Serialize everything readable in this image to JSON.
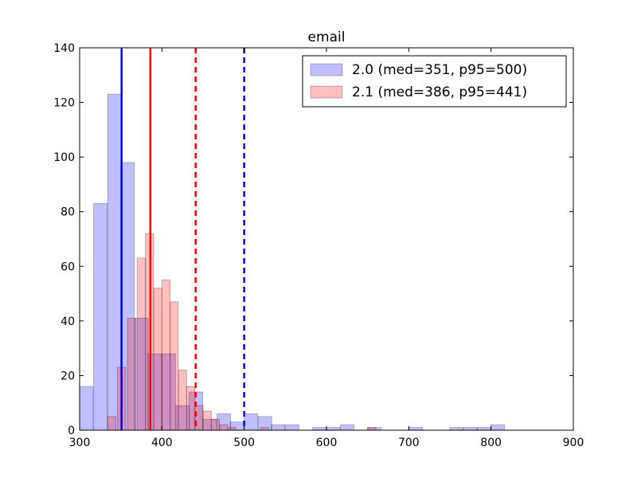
{
  "chart_data": {
    "type": "bar",
    "title": "email",
    "xlabel": "",
    "ylabel": "",
    "xlim": [
      300,
      900
    ],
    "ylim": [
      0,
      140
    ],
    "x_ticks": [
      300,
      400,
      500,
      600,
      700,
      800,
      900
    ],
    "y_ticks": [
      0,
      20,
      40,
      60,
      80,
      100,
      120,
      140
    ],
    "grid": false,
    "legend_position": "top-right",
    "bin_width": 16.5,
    "series": [
      {
        "name": "2.0 (med=351, p95=500)",
        "color": "#0000ff",
        "bars": [
          {
            "x0": 300,
            "value": 16
          },
          {
            "x0": 317,
            "value": 83
          },
          {
            "x0": 334,
            "value": 123
          },
          {
            "x0": 350,
            "value": 98
          },
          {
            "x0": 367,
            "value": 41
          },
          {
            "x0": 383,
            "value": 28
          },
          {
            "x0": 400,
            "value": 28
          },
          {
            "x0": 417,
            "value": 9
          },
          {
            "x0": 433,
            "value": 14
          },
          {
            "x0": 450,
            "value": 4
          },
          {
            "x0": 467,
            "value": 6
          },
          {
            "x0": 483,
            "value": 3
          },
          {
            "x0": 500,
            "value": 6
          },
          {
            "x0": 517,
            "value": 5
          },
          {
            "x0": 533,
            "value": 2
          },
          {
            "x0": 550,
            "value": 2
          },
          {
            "x0": 583,
            "value": 1
          },
          {
            "x0": 600,
            "value": 1
          },
          {
            "x0": 617,
            "value": 2
          },
          {
            "x0": 650,
            "value": 1
          },
          {
            "x0": 700,
            "value": 1
          },
          {
            "x0": 750,
            "value": 1
          },
          {
            "x0": 767,
            "value": 1
          },
          {
            "x0": 783,
            "value": 1
          },
          {
            "x0": 800,
            "value": 2
          }
        ],
        "median": 351,
        "p95": 500
      },
      {
        "name": "2.1 (med=386, p95=441)",
        "color": "#ff0000",
        "bars": [
          {
            "x0": 334,
            "value": 5
          },
          {
            "x0": 346,
            "value": 23
          },
          {
            "x0": 358,
            "value": 41
          },
          {
            "x0": 370,
            "value": 63
          },
          {
            "x0": 380,
            "value": 72
          },
          {
            "x0": 390,
            "value": 52
          },
          {
            "x0": 400,
            "value": 55
          },
          {
            "x0": 410,
            "value": 47
          },
          {
            "x0": 420,
            "value": 22
          },
          {
            "x0": 430,
            "value": 16
          },
          {
            "x0": 440,
            "value": 9
          },
          {
            "x0": 450,
            "value": 7
          },
          {
            "x0": 460,
            "value": 4
          },
          {
            "x0": 470,
            "value": 2
          },
          {
            "x0": 480,
            "value": 1
          },
          {
            "x0": 520,
            "value": 1
          },
          {
            "x0": 650,
            "value": 1
          }
        ],
        "median": 386,
        "p95": 441
      }
    ]
  }
}
